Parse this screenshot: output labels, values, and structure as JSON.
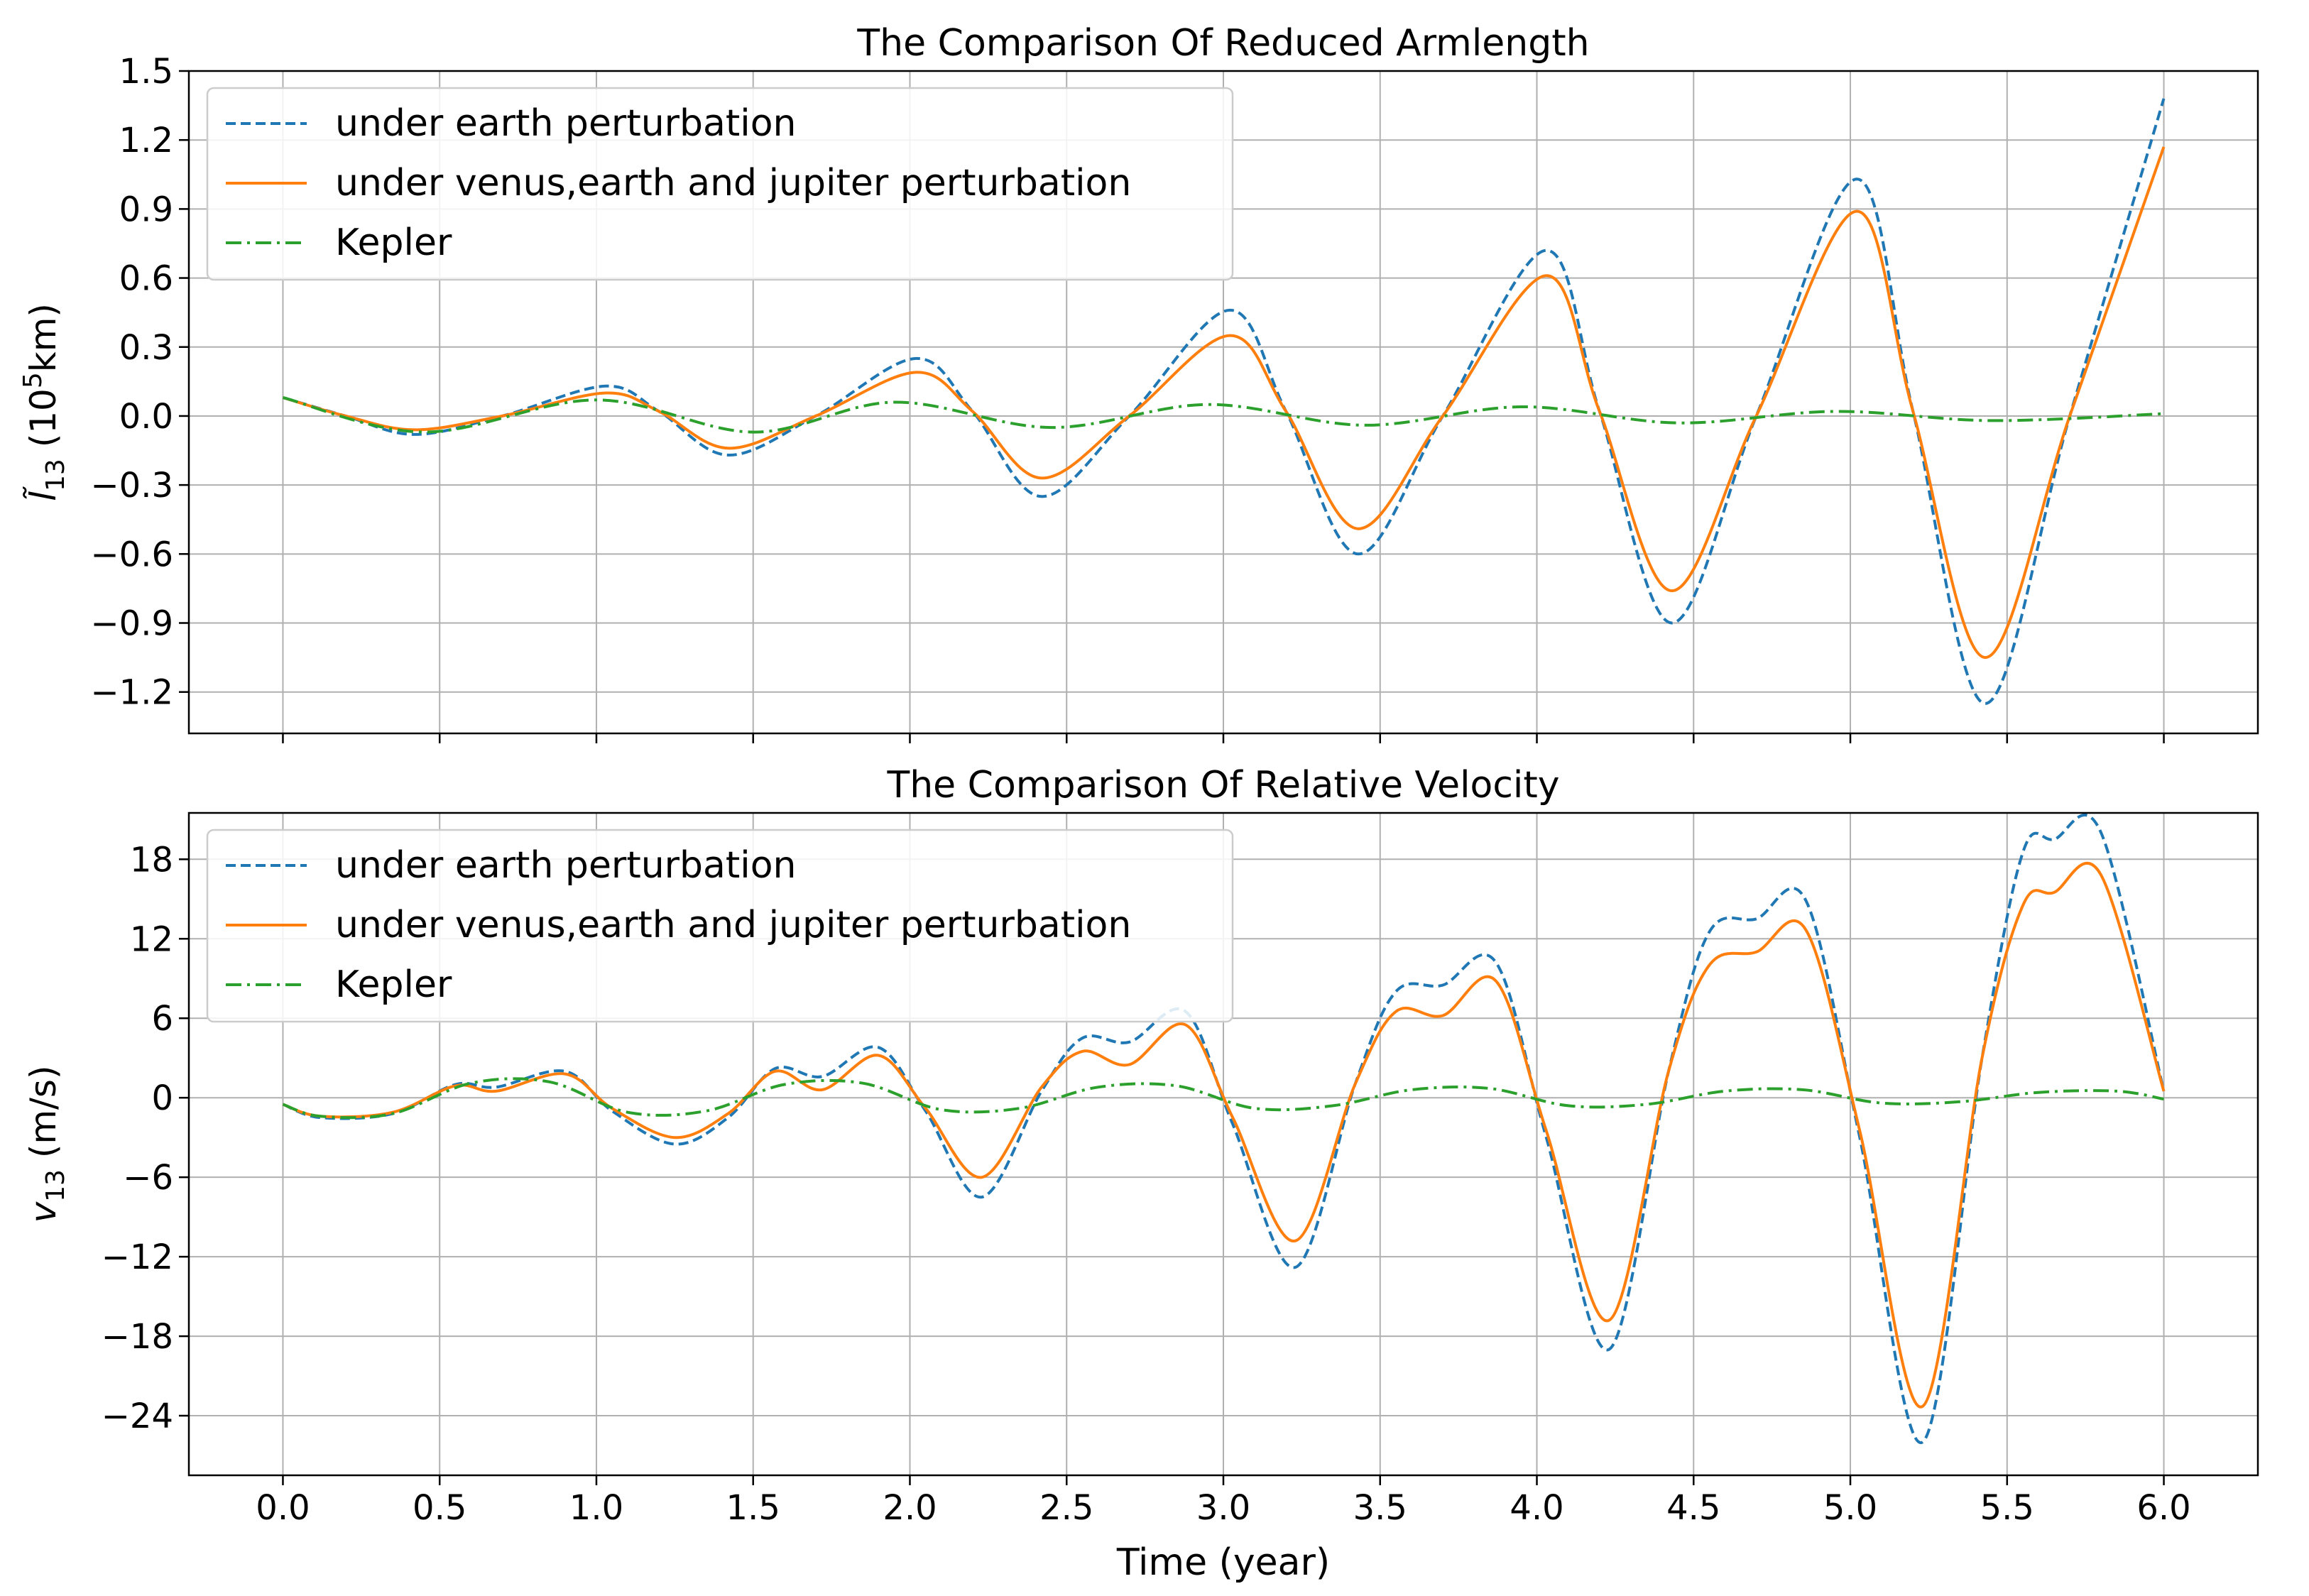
{
  "figure": {
    "xlabel": "Time (year)"
  },
  "legend_labels": [
    "under earth perturbation",
    "under venus,earth and jupiter perturbation",
    "Kepler"
  ],
  "colors": {
    "earth": "#1f77b4",
    "all": "#ff7f0e",
    "kepler": "#2ca02c",
    "grid": "#b0b0b0"
  },
  "chart_data": [
    {
      "type": "line",
      "title": "The Comparison Of Reduced Armlength",
      "ylabel_main": "l̃",
      "ylabel_sub": "13",
      "ylabel_unit_pre": " (10",
      "ylabel_unit_sup": "5",
      "ylabel_unit_post": "km)",
      "xlim": [
        -0.3,
        6.3
      ],
      "ylim": [
        -1.38,
        1.5
      ],
      "xticks": [
        0.0,
        0.5,
        1.0,
        1.5,
        2.0,
        2.5,
        3.0,
        3.5,
        4.0,
        4.5,
        5.0,
        5.5,
        6.0
      ],
      "yticks": [
        -1.2,
        -0.9,
        -0.6,
        -0.3,
        0.0,
        0.3,
        0.6,
        0.9,
        1.2,
        1.5
      ],
      "ytick_labels": [
        "−1.2",
        "−0.9",
        "−0.6",
        "−0.3",
        "0.0",
        "0.3",
        "0.6",
        "0.9",
        "1.2",
        "1.5"
      ],
      "grid": true,
      "legend_position": "upper-left",
      "series": [
        {
          "name": "under earth perturbation",
          "style": "dashed",
          "color": "#1f77b4",
          "x": [
            0.0,
            0.2,
            0.42,
            0.7,
            1.03,
            1.2,
            1.42,
            1.7,
            2.02,
            2.2,
            2.42,
            2.7,
            3.02,
            3.2,
            3.43,
            3.7,
            4.03,
            4.2,
            4.43,
            4.7,
            5.02,
            5.2,
            5.43,
            5.7,
            6.0
          ],
          "y": [
            0.08,
            0.0,
            -0.08,
            0.0,
            0.13,
            0.02,
            -0.17,
            0.0,
            0.25,
            0.02,
            -0.35,
            0.0,
            0.46,
            0.02,
            -0.6,
            0.0,
            0.72,
            0.02,
            -0.9,
            0.0,
            1.03,
            0.02,
            -1.25,
            0.0,
            1.38
          ]
        },
        {
          "name": "under venus,earth and jupiter perturbation",
          "style": "solid",
          "color": "#ff7f0e",
          "x": [
            0.0,
            0.2,
            0.42,
            0.7,
            1.03,
            1.2,
            1.42,
            1.7,
            2.02,
            2.2,
            2.42,
            2.7,
            3.02,
            3.2,
            3.43,
            3.7,
            4.03,
            4.2,
            4.43,
            4.7,
            5.02,
            5.2,
            5.43,
            5.7,
            6.0
          ],
          "y": [
            0.08,
            0.0,
            -0.06,
            0.0,
            0.1,
            0.02,
            -0.14,
            0.0,
            0.19,
            0.02,
            -0.27,
            0.0,
            0.35,
            0.02,
            -0.49,
            0.0,
            0.61,
            0.02,
            -0.76,
            0.0,
            0.89,
            0.02,
            -1.05,
            0.0,
            1.17
          ]
        },
        {
          "name": "Kepler",
          "style": "dashdot",
          "color": "#2ca02c",
          "x": [
            0.0,
            0.45,
            1.0,
            1.5,
            1.95,
            2.45,
            2.95,
            3.45,
            3.95,
            4.45,
            4.95,
            5.45,
            6.0
          ],
          "y": [
            0.08,
            -0.07,
            0.07,
            -0.07,
            0.06,
            -0.05,
            0.05,
            -0.04,
            0.04,
            -0.03,
            0.02,
            -0.02,
            0.01
          ]
        }
      ]
    },
    {
      "type": "line",
      "title": "The Comparison Of Relative Velocity",
      "ylabel_main": "v",
      "ylabel_sub": "13",
      "ylabel_unit_pre": " (m/s)",
      "ylabel_unit_sup": "",
      "ylabel_unit_post": "",
      "xlim": [
        -0.3,
        6.3
      ],
      "ylim": [
        -28.5,
        21.5
      ],
      "xticks": [
        0.0,
        0.5,
        1.0,
        1.5,
        2.0,
        2.5,
        3.0,
        3.5,
        4.0,
        4.5,
        5.0,
        5.5,
        6.0
      ],
      "yticks": [
        -24,
        -18,
        -12,
        -6,
        0,
        6,
        12,
        18
      ],
      "ytick_labels": [
        "−24",
        "−18",
        "−12",
        "−6",
        "0",
        "6",
        "12",
        "18"
      ],
      "xtick_labels": [
        "0.0",
        "0.5",
        "1.0",
        "1.5",
        "2.0",
        "2.5",
        "3.0",
        "3.5",
        "4.0",
        "4.5",
        "5.0",
        "5.5",
        "6.0"
      ],
      "grid": true,
      "legend_position": "upper-left",
      "series": [
        {
          "name": "under earth perturbation",
          "style": "dashed",
          "color": "#1f77b4",
          "x": [
            0.0,
            0.12,
            0.35,
            0.55,
            0.68,
            0.9,
            1.05,
            1.25,
            1.42,
            1.57,
            1.72,
            1.9,
            2.05,
            2.23,
            2.42,
            2.55,
            2.7,
            2.88,
            3.03,
            3.23,
            3.42,
            3.55,
            3.7,
            3.87,
            4.03,
            4.23,
            4.42,
            4.55,
            4.7,
            4.86,
            5.03,
            5.23,
            5.42,
            5.55,
            5.65,
            5.8,
            6.0
          ],
          "y": [
            -0.5,
            -1.5,
            -1.2,
            1.0,
            0.8,
            2.0,
            -1.0,
            -3.5,
            -1.5,
            2.2,
            1.6,
            3.8,
            -1.0,
            -7.5,
            0.5,
            4.5,
            4.2,
            6.5,
            -2.0,
            -12.8,
            1.0,
            8.0,
            8.5,
            10.2,
            -3.0,
            -19.0,
            2.0,
            12.5,
            13.5,
            14.8,
            -3.0,
            -26.0,
            3.0,
            18.5,
            19.5,
            20.0,
            0.5
          ]
        },
        {
          "name": "under venus,earth and jupiter perturbation",
          "style": "solid",
          "color": "#ff7f0e",
          "x": [
            0.0,
            0.12,
            0.35,
            0.55,
            0.68,
            0.9,
            1.05,
            1.25,
            1.42,
            1.57,
            1.72,
            1.9,
            2.05,
            2.23,
            2.42,
            2.55,
            2.7,
            2.88,
            3.03,
            3.23,
            3.42,
            3.55,
            3.7,
            3.87,
            4.03,
            4.23,
            4.42,
            4.55,
            4.7,
            4.86,
            5.03,
            5.23,
            5.42,
            5.55,
            5.65,
            5.8,
            6.0
          ],
          "y": [
            -0.5,
            -1.4,
            -1.1,
            0.9,
            0.5,
            1.8,
            -0.8,
            -3.0,
            -1.2,
            2.0,
            0.6,
            3.2,
            -0.8,
            -6.0,
            0.8,
            3.5,
            2.5,
            5.5,
            -1.5,
            -10.8,
            1.0,
            6.5,
            6.2,
            8.8,
            -2.5,
            -16.8,
            2.0,
            10.0,
            11.0,
            12.6,
            -2.5,
            -23.3,
            3.0,
            14.5,
            15.5,
            16.8,
            0.5
          ]
        },
        {
          "name": "Kepler",
          "style": "dashdot",
          "color": "#2ca02c",
          "x": [
            0.0,
            0.12,
            0.35,
            0.6,
            0.85,
            1.1,
            1.35,
            1.6,
            1.85,
            2.1,
            2.35,
            2.6,
            2.85,
            3.1,
            3.35,
            3.6,
            3.85,
            4.1,
            4.35,
            4.6,
            4.85,
            5.1,
            5.35,
            5.6,
            5.85,
            6.0
          ],
          "y": [
            -0.5,
            -1.4,
            -1.2,
            1.1,
            1.2,
            -1.1,
            -1.0,
            1.0,
            1.1,
            -0.9,
            -0.8,
            0.8,
            0.9,
            -0.8,
            -0.6,
            0.6,
            0.7,
            -0.6,
            -0.5,
            0.5,
            0.6,
            -0.4,
            -0.3,
            0.4,
            0.5,
            -0.1
          ]
        }
      ]
    }
  ]
}
